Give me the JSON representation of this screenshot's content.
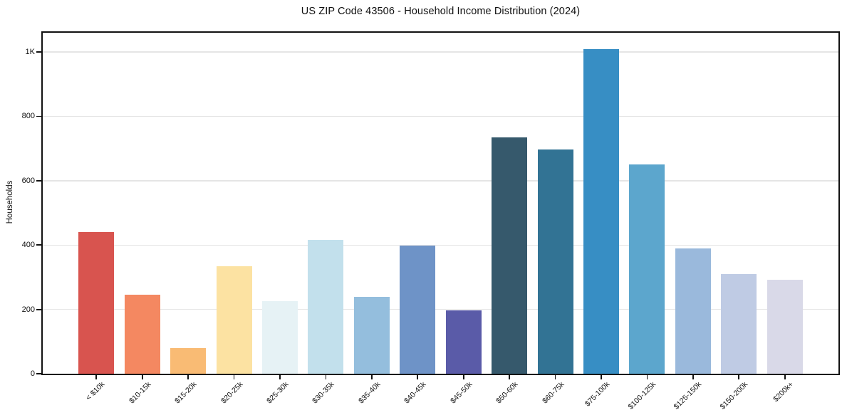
{
  "chart_data": {
    "type": "bar",
    "title": "US ZIP Code 43506 - Household Income Distribution (2024)",
    "xlabel": "",
    "ylabel": "Households",
    "categories": [
      "< $10k",
      "$10-15k",
      "$15-20k",
      "$20-25k",
      "$25-30k",
      "$30-35k",
      "$35-40k",
      "$40-45k",
      "$45-50k",
      "$50-60k",
      "$60-75k",
      "$75-100k",
      "$100-125k",
      "$125-150k",
      "$150-200k",
      "$200k+"
    ],
    "values": [
      440,
      245,
      80,
      335,
      225,
      415,
      240,
      398,
      197,
      735,
      698,
      1010,
      650,
      390,
      310,
      293
    ],
    "bar_colors": [
      "#d8544f",
      "#f48861",
      "#f9bb74",
      "#fce2a2",
      "#e6f2f5",
      "#c2e0ec",
      "#94bedd",
      "#6e93c7",
      "#5a5ba8",
      "#36596c",
      "#327394",
      "#378ec4",
      "#5ca6cd",
      "#9ab9dc",
      "#bfcbe4",
      "#d9d9e8"
    ],
    "ylim": [
      0,
      1060
    ],
    "ytick_values": [
      0,
      200,
      400,
      600,
      800,
      1000
    ],
    "ytick_labels": [
      "0",
      "200",
      "400",
      "600",
      "800",
      "1K"
    ],
    "grid": "horizontal",
    "legend_position": "none",
    "colors": {
      "gridline": "#e5e5e5",
      "axis": "#111111",
      "text": "#111111",
      "background": "#ffffff"
    }
  }
}
